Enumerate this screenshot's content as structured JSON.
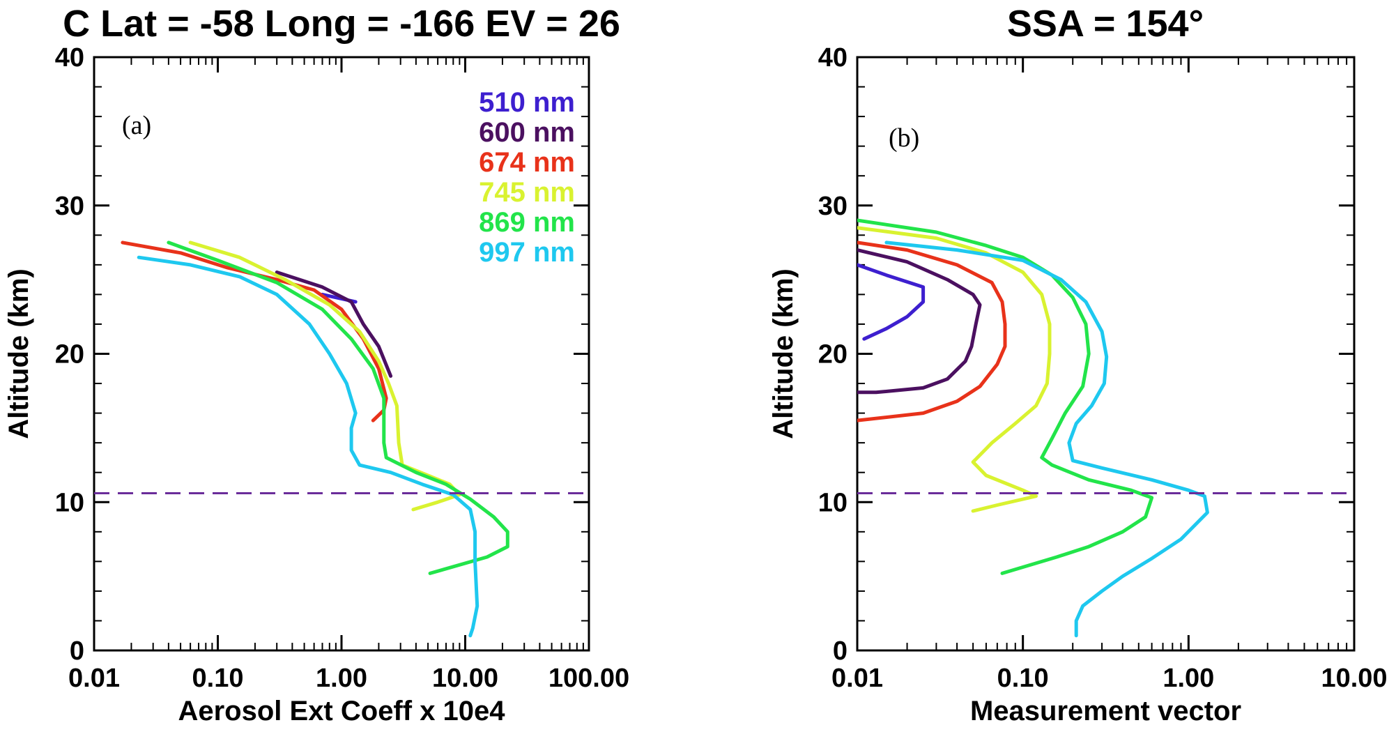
{
  "chart_data": [
    {
      "type": "line",
      "panel_label": "(a)",
      "title": "C Lat = -58 Long = -166 EV = 26",
      "xlabel": "Aerosol Ext Coeff x 10e4",
      "ylabel": "Altitude (km)",
      "xscale": "log",
      "xlim": [
        0.01,
        100
      ],
      "ylim": [
        0,
        40
      ],
      "xticks": [
        "0.01",
        "0.10",
        "1.00",
        "10.00",
        "100.00"
      ],
      "yticks": [
        "0",
        "10",
        "20",
        "30",
        "40"
      ],
      "hline": {
        "y": 10.6,
        "color": "#6a2c9a",
        "style": "dashed"
      },
      "legend": {
        "placement": "top-right"
      },
      "series": [
        {
          "name": "510 nm",
          "color": "#3d1fcf",
          "points": [
            [
              0.7,
              24.0
            ],
            [
              1.3,
              23.5
            ]
          ]
        },
        {
          "name": "600 nm",
          "color": "#4b1060",
          "points": [
            [
              0.3,
              25.5
            ],
            [
              0.7,
              24.5
            ],
            [
              1.2,
              23.5
            ],
            [
              1.5,
              22.0
            ],
            [
              2.0,
              20.5
            ],
            [
              2.5,
              18.5
            ]
          ]
        },
        {
          "name": "674 nm",
          "color": "#e8321a",
          "points": [
            [
              0.017,
              27.5
            ],
            [
              0.05,
              26.8
            ],
            [
              0.12,
              25.8
            ],
            [
              0.3,
              25.0
            ],
            [
              0.6,
              24.3
            ],
            [
              1.0,
              23.0
            ],
            [
              1.5,
              21.0
            ],
            [
              2.0,
              19.0
            ],
            [
              2.3,
              17.0
            ],
            [
              2.2,
              16.2
            ],
            [
              1.8,
              15.5
            ]
          ]
        },
        {
          "name": "745 nm",
          "color": "#d9f230",
          "points": [
            [
              0.06,
              27.5
            ],
            [
              0.15,
              26.5
            ],
            [
              0.35,
              25.0
            ],
            [
              0.8,
              23.3
            ],
            [
              1.4,
              21.5
            ],
            [
              2.0,
              19.5
            ],
            [
              2.4,
              18.0
            ],
            [
              2.8,
              16.5
            ],
            [
              2.9,
              14.0
            ],
            [
              3.1,
              12.5
            ],
            [
              5.0,
              11.8
            ],
            [
              7.5,
              11.2
            ],
            [
              9.0,
              10.5
            ],
            [
              6.0,
              10.0
            ],
            [
              3.8,
              9.5
            ]
          ]
        },
        {
          "name": "869 nm",
          "color": "#22e44a",
          "points": [
            [
              0.04,
              27.5
            ],
            [
              0.1,
              26.3
            ],
            [
              0.3,
              24.8
            ],
            [
              0.7,
              23.0
            ],
            [
              1.2,
              21.0
            ],
            [
              1.8,
              19.0
            ],
            [
              2.2,
              17.0
            ],
            [
              2.2,
              14.0
            ],
            [
              2.3,
              13.0
            ],
            [
              4.0,
              12.0
            ],
            [
              7.0,
              11.2
            ],
            [
              11.0,
              10.2
            ],
            [
              17.0,
              9.0
            ],
            [
              22.0,
              8.0
            ],
            [
              22.0,
              7.0
            ],
            [
              15.0,
              6.3
            ],
            [
              5.2,
              5.2
            ]
          ]
        },
        {
          "name": "997 nm",
          "color": "#1ec8ef",
          "points": [
            [
              0.023,
              26.5
            ],
            [
              0.06,
              26.0
            ],
            [
              0.15,
              25.2
            ],
            [
              0.3,
              24.0
            ],
            [
              0.55,
              22.0
            ],
            [
              0.8,
              20.0
            ],
            [
              1.1,
              18.0
            ],
            [
              1.3,
              16.0
            ],
            [
              1.2,
              15.0
            ],
            [
              1.2,
              13.5
            ],
            [
              1.4,
              12.5
            ],
            [
              2.5,
              12.0
            ],
            [
              4.5,
              11.2
            ],
            [
              8.0,
              10.5
            ],
            [
              11.0,
              9.5
            ],
            [
              12.0,
              8.0
            ],
            [
              12.0,
              6.0
            ],
            [
              12.5,
              3.0
            ],
            [
              11.5,
              1.5
            ],
            [
              11.0,
              1.0
            ]
          ]
        }
      ]
    },
    {
      "type": "line",
      "panel_label": "(b)",
      "title": "SSA = 154°",
      "xlabel": "Measurement vector",
      "ylabel": "Altitude (km)",
      "xscale": "log",
      "xlim": [
        0.01,
        10
      ],
      "ylim": [
        0,
        40
      ],
      "xticks": [
        "0.01",
        "0.10",
        "1.00",
        "10.00"
      ],
      "yticks": [
        "0",
        "10",
        "20",
        "30",
        "40"
      ],
      "hline": {
        "y": 10.6,
        "color": "#6a2c9a",
        "style": "dashed"
      },
      "series": [
        {
          "name": "510 nm",
          "color": "#3d1fcf",
          "points": [
            [
              0.01,
              26.0
            ],
            [
              0.015,
              25.3
            ],
            [
              0.025,
              24.5
            ],
            [
              0.025,
              23.5
            ],
            [
              0.02,
              22.5
            ],
            [
              0.015,
              21.7
            ],
            [
              0.011,
              21.0
            ]
          ]
        },
        {
          "name": "600 nm",
          "color": "#4b1060",
          "points": [
            [
              0.01,
              27.0
            ],
            [
              0.02,
              26.2
            ],
            [
              0.035,
              25.0
            ],
            [
              0.05,
              24.0
            ],
            [
              0.055,
              23.3
            ],
            [
              0.052,
              22.0
            ],
            [
              0.049,
              20.5
            ],
            [
              0.045,
              19.5
            ],
            [
              0.035,
              18.3
            ],
            [
              0.025,
              17.7
            ],
            [
              0.013,
              17.4
            ],
            [
              0.01,
              17.4
            ]
          ]
        },
        {
          "name": "674 nm",
          "color": "#e8321a",
          "points": [
            [
              0.01,
              27.5
            ],
            [
              0.02,
              27.0
            ],
            [
              0.04,
              26.0
            ],
            [
              0.065,
              24.8
            ],
            [
              0.075,
              23.5
            ],
            [
              0.078,
              22.0
            ],
            [
              0.078,
              20.5
            ],
            [
              0.07,
              19.3
            ],
            [
              0.055,
              17.8
            ],
            [
              0.04,
              16.8
            ],
            [
              0.025,
              16.0
            ],
            [
              0.01,
              15.5
            ]
          ]
        },
        {
          "name": "745 nm",
          "color": "#d9f230",
          "points": [
            [
              0.01,
              28.5
            ],
            [
              0.03,
              27.8
            ],
            [
              0.06,
              26.8
            ],
            [
              0.1,
              25.5
            ],
            [
              0.13,
              24.0
            ],
            [
              0.145,
              22.0
            ],
            [
              0.145,
              20.0
            ],
            [
              0.14,
              18.0
            ],
            [
              0.12,
              16.5
            ],
            [
              0.09,
              15.3
            ],
            [
              0.065,
              14.0
            ],
            [
              0.05,
              12.7
            ],
            [
              0.06,
              11.8
            ],
            [
              0.1,
              10.8
            ],
            [
              0.12,
              10.4
            ],
            [
              0.07,
              9.8
            ],
            [
              0.05,
              9.4
            ]
          ]
        },
        {
          "name": "869 nm",
          "color": "#22e44a",
          "points": [
            [
              0.01,
              29.0
            ],
            [
              0.03,
              28.2
            ],
            [
              0.06,
              27.3
            ],
            [
              0.1,
              26.5
            ],
            [
              0.15,
              25.3
            ],
            [
              0.2,
              23.8
            ],
            [
              0.24,
              22.0
            ],
            [
              0.25,
              20.0
            ],
            [
              0.23,
              17.8
            ],
            [
              0.18,
              16.0
            ],
            [
              0.15,
              14.3
            ],
            [
              0.13,
              13.0
            ],
            [
              0.15,
              12.5
            ],
            [
              0.25,
              11.5
            ],
            [
              0.45,
              10.8
            ],
            [
              0.6,
              10.3
            ],
            [
              0.55,
              9.0
            ],
            [
              0.4,
              8.0
            ],
            [
              0.25,
              7.0
            ],
            [
              0.16,
              6.3
            ],
            [
              0.075,
              5.2
            ]
          ]
        },
        {
          "name": "997 nm",
          "color": "#1ec8ef",
          "points": [
            [
              0.015,
              27.5
            ],
            [
              0.04,
              27.0
            ],
            [
              0.1,
              26.3
            ],
            [
              0.17,
              25.0
            ],
            [
              0.24,
              23.5
            ],
            [
              0.3,
              21.5
            ],
            [
              0.32,
              19.8
            ],
            [
              0.31,
              18.0
            ],
            [
              0.26,
              16.5
            ],
            [
              0.21,
              15.3
            ],
            [
              0.19,
              14.0
            ],
            [
              0.2,
              12.8
            ],
            [
              0.3,
              12.3
            ],
            [
              0.6,
              11.5
            ],
            [
              1.0,
              10.8
            ],
            [
              1.25,
              10.4
            ],
            [
              1.3,
              9.3
            ],
            [
              0.9,
              7.5
            ],
            [
              0.6,
              6.2
            ],
            [
              0.4,
              5.0
            ],
            [
              0.3,
              4.0
            ],
            [
              0.23,
              3.0
            ],
            [
              0.21,
              2.0
            ],
            [
              0.21,
              1.0
            ]
          ]
        }
      ]
    }
  ]
}
